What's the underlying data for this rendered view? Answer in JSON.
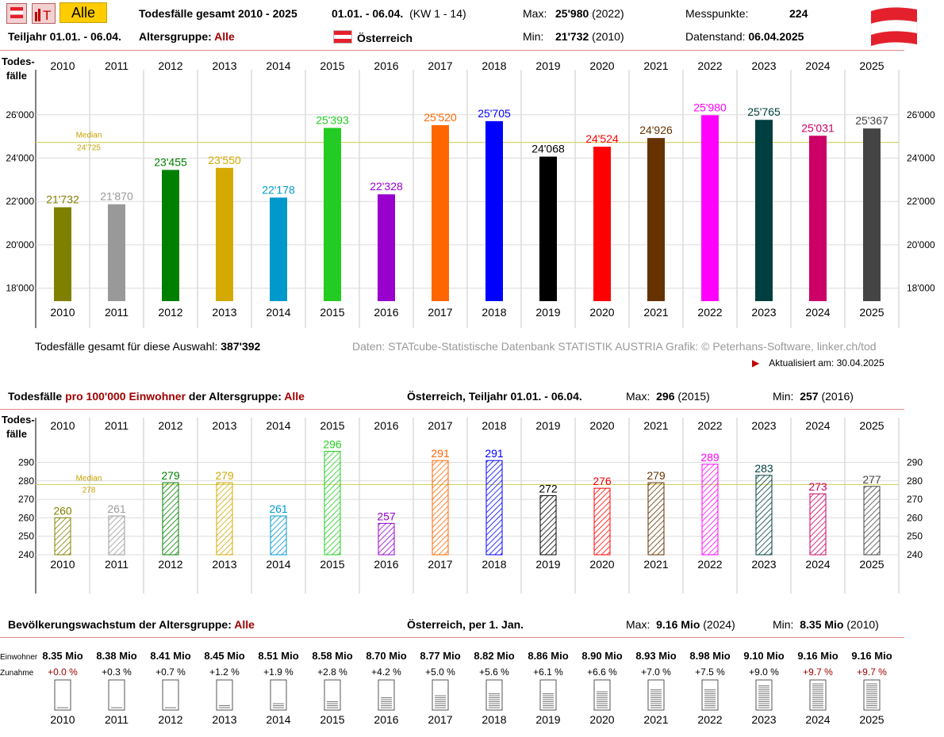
{
  "header": {
    "title": "Todesfälle gesamt 2010 - 2025",
    "range": "01.01. - 06.04.",
    "kw": "(KW 1 - 14)",
    "max_label": "Max:",
    "max_value": "25'980",
    "max_year": "(2022)",
    "min_label": "Min:",
    "min_value": "21'732",
    "min_year": "(2010)",
    "messpunkte_label": "Messpunkte:",
    "messpunkte_value": "224",
    "teiljahr": "Teiljahr 01.01. - 06.04.",
    "altersgruppe_label": "Altersgruppe:",
    "altersgruppe_value": "Alle",
    "country": "Österreich",
    "datenstand_label": "Datenstand:",
    "datenstand_value": "06.04.2025",
    "alle_button": "Alle",
    "chart_button": "T"
  },
  "years": [
    "2010",
    "2011",
    "2012",
    "2013",
    "2014",
    "2015",
    "2016",
    "2017",
    "2018",
    "2019",
    "2020",
    "2021",
    "2022",
    "2023",
    "2024",
    "2025"
  ],
  "colors": [
    "#808000",
    "#999999",
    "#008000",
    "#d4aa00",
    "#0099cc",
    "#22cc22",
    "#9900cc",
    "#ff6600",
    "#0000ff",
    "#000000",
    "#ff0000",
    "#663300",
    "#ff00ff",
    "#003f3f",
    "#cc0066",
    "#444444"
  ],
  "chart1": {
    "ylabel": "Todes-\nfälle",
    "median_label": "Median",
    "median_value_label": "24'725",
    "yticks": [
      "18'000",
      "20'000",
      "22'000",
      "24'000",
      "26'000"
    ],
    "summary_label": "Todesfälle gesamt für diese Auswahl:",
    "summary_value": "387'392",
    "source": "Daten: STATcube-Statistische Datenbank STATISTIK AUSTRIA  Grafik: © Peterhans-Software, linker.ch/tod",
    "updated": "Aktualisiert am: 30.04.2025"
  },
  "chart2": {
    "title_a": "Todesfälle",
    "title_b": "pro 100'000 Einwohner",
    "title_c": "der Altersgruppe:",
    "title_d": "Alle",
    "region": "Österreich, Teiljahr 01.01. - 06.04.",
    "max_label": "Max:",
    "max_value": "296",
    "max_year": "(2015)",
    "min_label": "Min:",
    "min_value": "257",
    "min_year": "(2016)",
    "ylabel": "Todes-\nfälle",
    "median_label": "Median",
    "median_value_label": "278",
    "yticks": [
      "240",
      "250",
      "260",
      "270",
      "280",
      "290"
    ]
  },
  "chart3": {
    "title_a": "Bevölkerungswachstum der Altersgruppe:",
    "title_b": "Alle",
    "region": "Österreich, per 1. Jan.",
    "max_label": "Max:",
    "max_value": "9.16 Mio",
    "max_year": "(2024)",
    "min_label": "Min:",
    "min_value": "8.35 Mio",
    "min_year": "(2010)",
    "row1_label": "Einwohner",
    "row2_label": "Zunahme",
    "population": [
      "8.35 Mio",
      "8.38 Mio",
      "8.41 Mio",
      "8.45 Mio",
      "8.51 Mio",
      "8.58 Mio",
      "8.70 Mio",
      "8.77 Mio",
      "8.82 Mio",
      "8.86 Mio",
      "8.90 Mio",
      "8.93 Mio",
      "8.98 Mio",
      "9.10 Mio",
      "9.16 Mio",
      "9.16 Mio"
    ],
    "growth": [
      "+0.0 %",
      "+0.3 %",
      "+0.7 %",
      "+1.2 %",
      "+1.9 %",
      "+2.8 %",
      "+4.2 %",
      "+5.0 %",
      "+5.6 %",
      "+6.1 %",
      "+6.6 %",
      "+7.0 %",
      "+7.5 %",
      "+9.0 %",
      "+9.7 %",
      "+9.7 %"
    ],
    "growth_highlight": [
      true,
      false,
      false,
      false,
      false,
      false,
      false,
      false,
      false,
      false,
      false,
      false,
      false,
      false,
      true,
      true
    ],
    "fill_fraction": [
      0.0,
      0.03,
      0.07,
      0.12,
      0.19,
      0.28,
      0.42,
      0.5,
      0.56,
      0.61,
      0.66,
      0.7,
      0.75,
      0.9,
      0.97,
      0.97
    ]
  },
  "chart_data": [
    {
      "type": "bar",
      "title": "Todesfälle gesamt 2010 - 2025",
      "ylabel": "Todes-fälle",
      "categories": [
        "2010",
        "2011",
        "2012",
        "2013",
        "2014",
        "2015",
        "2016",
        "2017",
        "2018",
        "2019",
        "2020",
        "2021",
        "2022",
        "2023",
        "2024",
        "2025"
      ],
      "values": [
        21732,
        21870,
        23455,
        23550,
        22178,
        25393,
        22328,
        25520,
        25705,
        24068,
        24524,
        24926,
        25980,
        25765,
        25031,
        25367
      ],
      "value_labels": [
        "21'732",
        "21'870",
        "23'455",
        "23'550",
        "22'178",
        "25'393",
        "22'328",
        "25'520",
        "25'705",
        "24'068",
        "24'524",
        "24'926",
        "25'980",
        "25'765",
        "25'031",
        "25'367"
      ],
      "median": 24725,
      "ylim": [
        17400,
        27000
      ],
      "yticks": [
        18000,
        20000,
        22000,
        24000,
        26000
      ],
      "grid": true
    },
    {
      "type": "bar",
      "title": "Todesfälle pro 100'000 Einwohner der Altersgruppe: Alle",
      "ylabel": "Todes-fälle",
      "categories": [
        "2010",
        "2011",
        "2012",
        "2013",
        "2014",
        "2015",
        "2016",
        "2017",
        "2018",
        "2019",
        "2020",
        "2021",
        "2022",
        "2023",
        "2024",
        "2025"
      ],
      "values": [
        260,
        261,
        279,
        279,
        261,
        296,
        257,
        291,
        291,
        272,
        276,
        279,
        289,
        283,
        273,
        277
      ],
      "median": 278,
      "ylim": [
        240,
        298
      ],
      "yticks": [
        240,
        250,
        260,
        270,
        280,
        290
      ],
      "grid": true
    },
    {
      "type": "bar",
      "title": "Bevölkerungswachstum der Altersgruppe: Alle",
      "categories": [
        "2010",
        "2011",
        "2012",
        "2013",
        "2014",
        "2015",
        "2016",
        "2017",
        "2018",
        "2019",
        "2020",
        "2021",
        "2022",
        "2023",
        "2024",
        "2025"
      ],
      "series": [
        {
          "name": "Einwohner",
          "values": [
            8.35,
            8.38,
            8.41,
            8.45,
            8.51,
            8.58,
            8.7,
            8.77,
            8.82,
            8.86,
            8.9,
            8.93,
            8.98,
            9.1,
            9.16,
            9.16
          ]
        },
        {
          "name": "Zunahme",
          "values": [
            0.0,
            0.3,
            0.7,
            1.2,
            1.9,
            2.8,
            4.2,
            5.0,
            5.6,
            6.1,
            6.6,
            7.0,
            7.5,
            9.0,
            9.7,
            9.7
          ]
        }
      ]
    }
  ]
}
